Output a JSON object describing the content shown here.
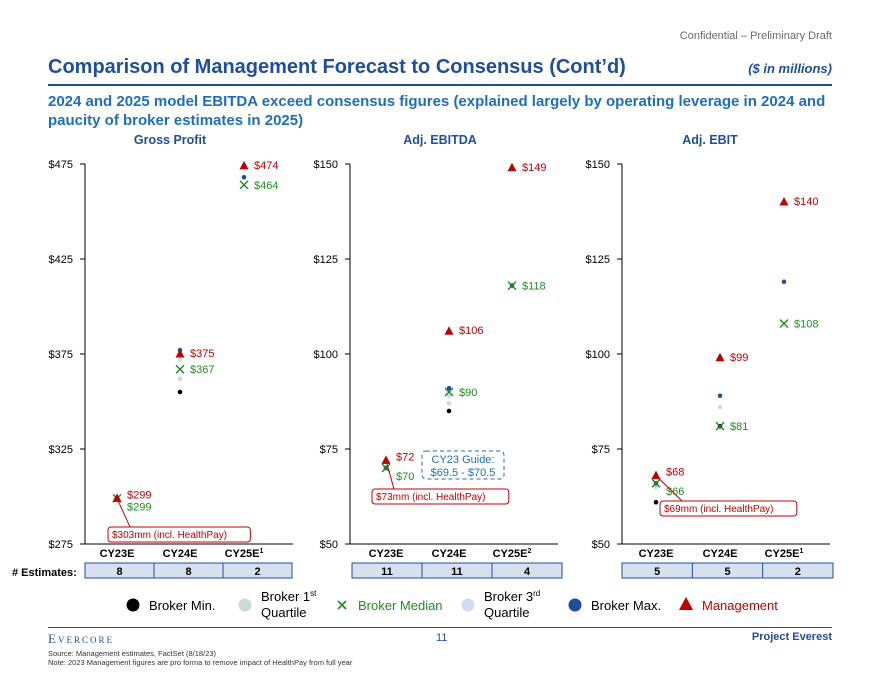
{
  "header": {
    "confidential": "Confidential – Preliminary Draft",
    "title": "Comparison of Management Forecast to Consensus (Cont’d)",
    "units": "($ in millions)",
    "subtitle": "2024 and 2025 model EBITDA exceed consensus figures (explained largely by operating leverage in 2024 and paucity of broker estimates in 2025)"
  },
  "colors": {
    "brand": "#1f4e9e",
    "subtitle": "#1f6fb8",
    "broker_min": "#000000",
    "broker_q1": "#c9dbd5",
    "broker_median": "#228b22",
    "broker_q3": "#cfdcf2",
    "broker_max": "#1f4e9e",
    "management": "#c00000"
  },
  "estimates_label": "# Estimates:",
  "chart_data": [
    {
      "type": "scatter",
      "title": "Gross Profit",
      "ylim": [
        275,
        475
      ],
      "yticks": [
        "$475",
        "$425",
        "$375",
        "$325",
        "$275"
      ],
      "ytick_values": [
        475,
        425,
        375,
        325,
        275
      ],
      "categories": [
        "CY23E",
        "CY24E",
        "CY25E"
      ],
      "category_superscripts": [
        "",
        "",
        "1"
      ],
      "estimates": [
        "8",
        "8",
        "2"
      ],
      "series": {
        "broker_min": [
          299,
          355,
          null
        ],
        "broker_q1": [
          299,
          362,
          null
        ],
        "broker_median": [
          299,
          367,
          464
        ],
        "broker_q3": [
          299,
          372,
          null
        ],
        "broker_max": [
          299,
          377,
          468
        ],
        "management": [
          299,
          375,
          474
        ]
      },
      "labels": {
        "management": [
          "$299",
          "$375",
          "$474"
        ],
        "median": [
          "$299",
          "$367",
          "$464"
        ]
      },
      "callout": "$303mm (incl. HealthPay)"
    },
    {
      "type": "scatter",
      "title": "Adj. EBITDA",
      "ylim": [
        50,
        150
      ],
      "yticks": [
        "$150",
        "$125",
        "$100",
        "$75",
        "$50"
      ],
      "ytick_values": [
        150,
        125,
        100,
        75,
        50
      ],
      "categories": [
        "CY23E",
        "CY24E",
        "CY25E"
      ],
      "category_superscripts": [
        "",
        "",
        "2"
      ],
      "estimates": [
        "11",
        "11",
        "4"
      ],
      "series": {
        "broker_min": [
          70,
          85,
          null
        ],
        "broker_q1": [
          70,
          87,
          null
        ],
        "broker_median": [
          70,
          90,
          118
        ],
        "broker_q3": [
          70,
          89,
          null
        ],
        "broker_max": [
          70,
          91,
          118
        ],
        "management": [
          72,
          106,
          149
        ]
      },
      "labels": {
        "management": [
          "$72",
          "$106",
          "$149"
        ],
        "median": [
          "$70",
          "$90",
          "$118"
        ]
      },
      "callout": "$73mm (incl. HealthPay)",
      "guide_label": "CY23 Guide:",
      "guide_value": "$69.5 - $70.5"
    },
    {
      "type": "scatter",
      "title": "Adj. EBIT",
      "ylim": [
        50,
        150
      ],
      "yticks": [
        "$150",
        "$125",
        "$100",
        "$75",
        "$50"
      ],
      "ytick_values": [
        150,
        125,
        100,
        75,
        50
      ],
      "categories": [
        "CY23E",
        "CY24E",
        "CY25E"
      ],
      "category_superscripts": [
        "",
        "",
        "1"
      ],
      "estimates": [
        "5",
        "5",
        "2"
      ],
      "series": {
        "broker_min": [
          61,
          81,
          null
        ],
        "broker_q1": [
          65,
          81,
          null
        ],
        "broker_median": [
          66,
          81,
          108
        ],
        "broker_q3": [
          66,
          86,
          null
        ],
        "broker_max": [
          66,
          89,
          119
        ],
        "management": [
          68,
          99,
          140
        ]
      },
      "labels": {
        "management": [
          "$68",
          "$99",
          "$140"
        ],
        "median": [
          "$66",
          "$81",
          "$108"
        ]
      },
      "callout": "$69mm (incl. HealthPay)"
    }
  ],
  "legend": [
    {
      "key": "broker_min",
      "label": "Broker Min.",
      "marker": "dot"
    },
    {
      "key": "broker_q1",
      "label": "Broker 1",
      "sup": "st",
      "label2": "Quartile",
      "marker": "dot"
    },
    {
      "key": "broker_median",
      "label": "Broker Median",
      "marker": "x"
    },
    {
      "key": "broker_q3",
      "label": "Broker 3",
      "sup": "rd",
      "label2": "Quartile",
      "marker": "dot"
    },
    {
      "key": "broker_max",
      "label": "Broker Max.",
      "marker": "dot"
    },
    {
      "key": "management",
      "label": "Management",
      "marker": "triangle"
    }
  ],
  "footer": {
    "logo": "Evercore",
    "page": "11",
    "project": "Project Everest",
    "source": "Source: Management estimates, FactSet (8/18/23)",
    "note": "Note: 2023 Management figures are pro forma to remove impact of HealthPay from full year"
  }
}
